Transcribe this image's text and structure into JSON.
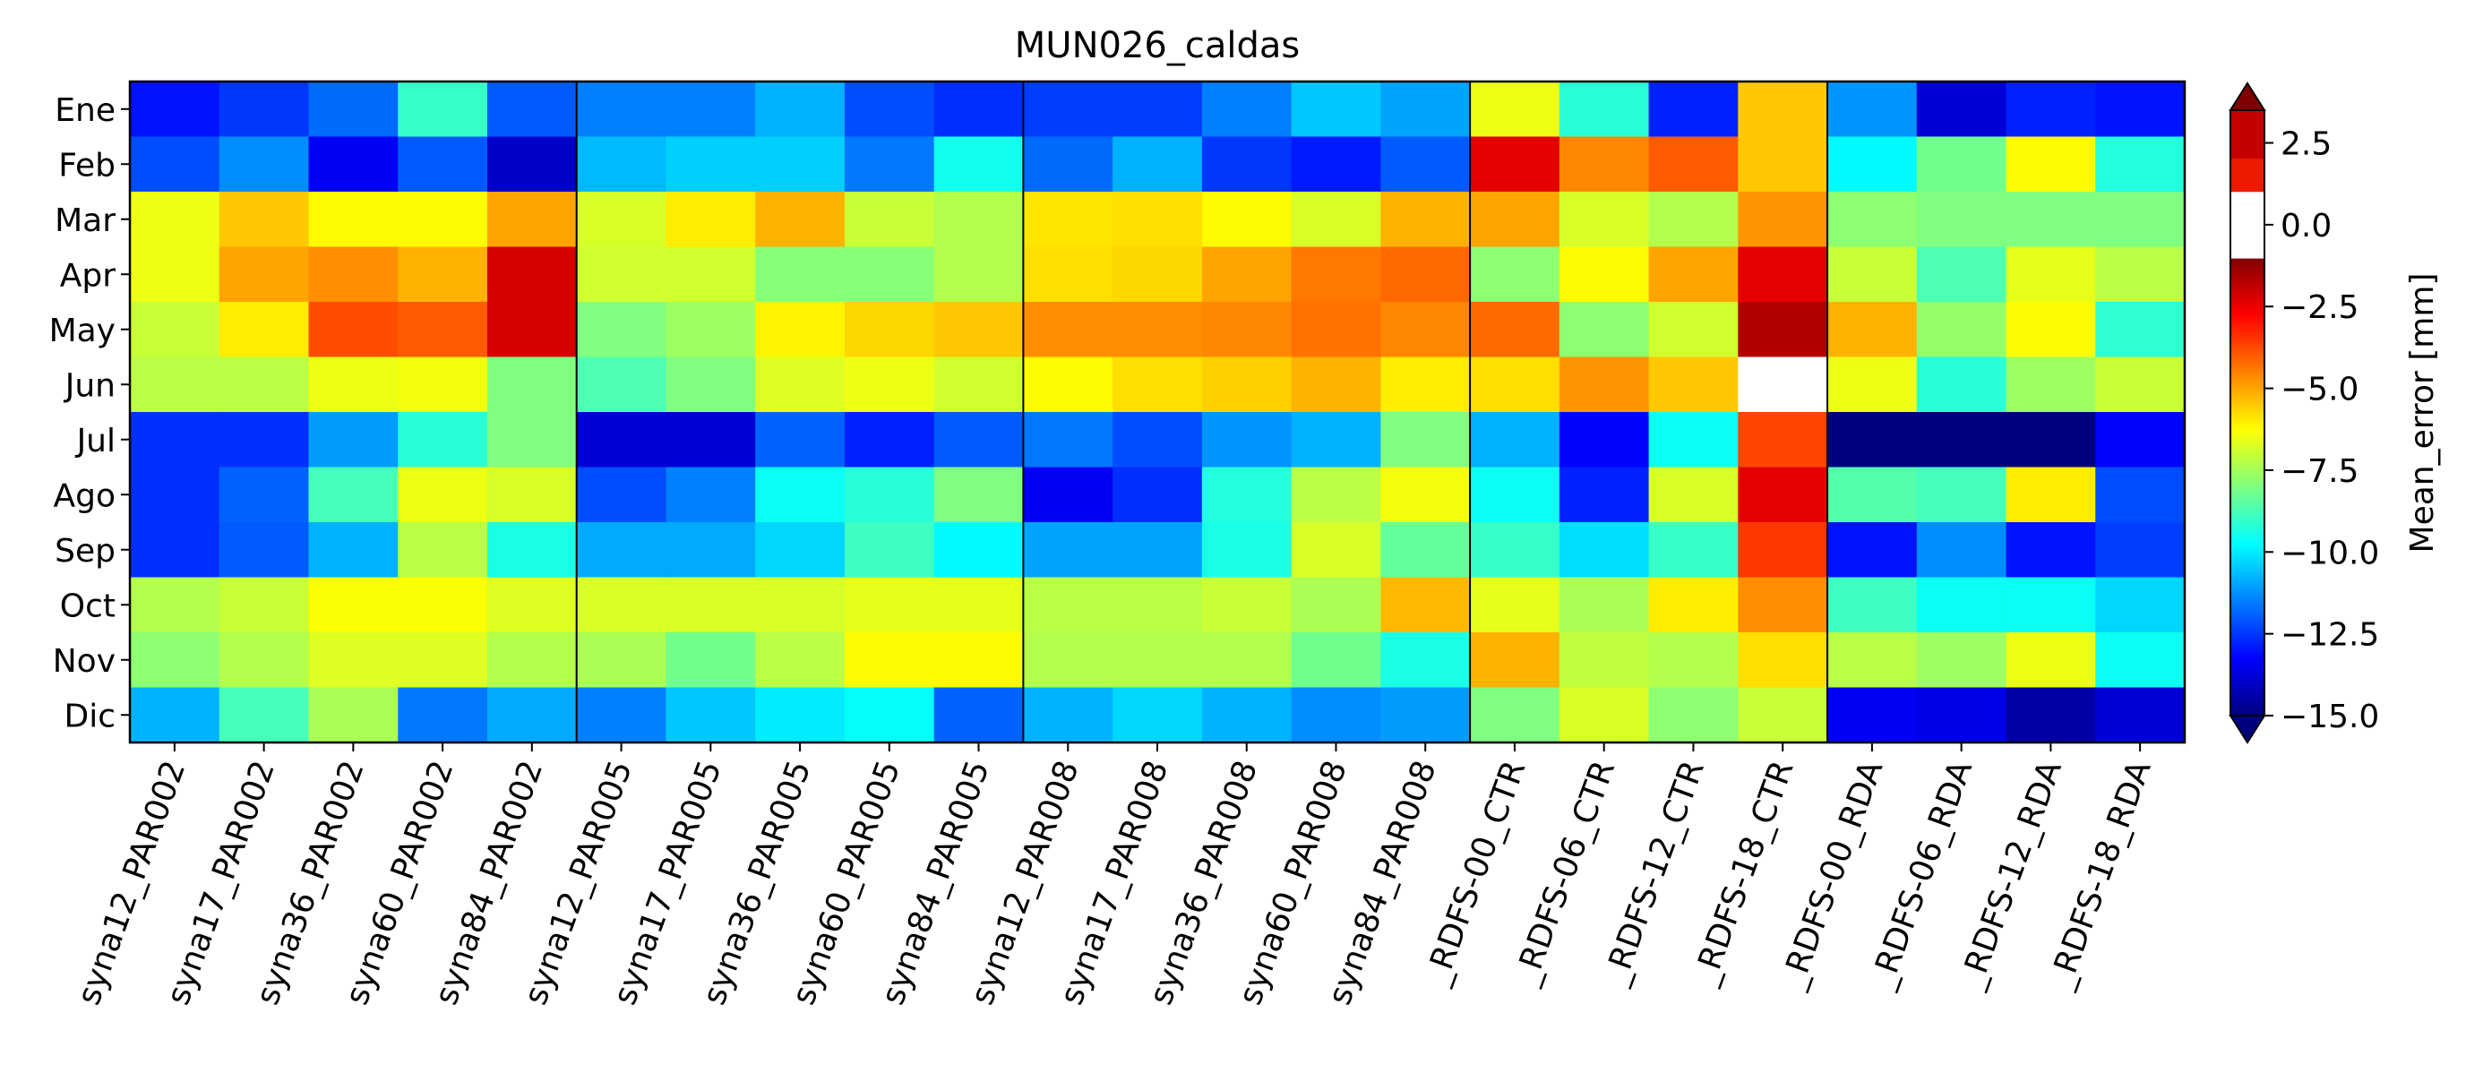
{
  "chart_data": {
    "type": "heatmap",
    "title": "MUN026_caldas",
    "xlabel": "",
    "ylabel": "",
    "categories": [
      "syna12_PAR002",
      "syna17_PAR002",
      "syna36_PAR002",
      "syna60_PAR002",
      "syna84_PAR002",
      "syna12_PAR005",
      "syna17_PAR005",
      "syna36_PAR005",
      "syna60_PAR005",
      "syna84_PAR005",
      "syna12_PAR008",
      "syna17_PAR008",
      "syna36_PAR008",
      "syna60_PAR008",
      "syna84_PAR008",
      "_RDFS-00_CTR",
      "_RDFS-06_CTR",
      "_RDFS-12_CTR",
      "_RDFS-18_CTR",
      "_RDFS-00_RDA",
      "_RDFS-06_RDA",
      "_RDFS-12_RDA",
      "_RDFS-18_RDA"
    ],
    "rows": [
      "Ene",
      "Feb",
      "Mar",
      "Apr",
      "May",
      "Jun",
      "Jul",
      "Ago",
      "Sep",
      "Oct",
      "Nov",
      "Dic"
    ],
    "values": [
      [
        -13.0,
        -12.5,
        -11.8,
        -9.0,
        -12.0,
        -11.5,
        -11.5,
        -10.8,
        -12.2,
        -12.6,
        -12.4,
        -12.4,
        -11.5,
        -10.5,
        -11.0,
        -6.5,
        -9.2,
        -12.8,
        -5.5,
        -11.2,
        -13.8,
        -12.8,
        -13.0
      ],
      [
        -12.2,
        -11.3,
        -13.4,
        -12.0,
        -14.0,
        -10.7,
        -10.4,
        -10.4,
        -11.6,
        -9.5,
        -11.8,
        -10.8,
        -12.5,
        -12.9,
        -12.0,
        -2.4,
        -4.6,
        -4.0,
        -5.5,
        -9.8,
        -8.2,
        -6.2,
        -9.3
      ],
      [
        -6.5,
        -5.5,
        -6.2,
        -6.2,
        -5.0,
        -6.8,
        -6.0,
        -5.2,
        -7.0,
        -7.3,
        -5.9,
        -5.8,
        -6.2,
        -6.8,
        -5.2,
        -5.0,
        -6.8,
        -7.3,
        -4.8,
        -7.8,
        -8.0,
        -8.0,
        -8.0
      ],
      [
        -6.5,
        -5.0,
        -4.7,
        -5.2,
        -2.2,
        -6.9,
        -6.9,
        -7.9,
        -7.9,
        -7.3,
        -5.8,
        -5.7,
        -5.0,
        -4.4,
        -4.2,
        -7.8,
        -6.2,
        -5.0,
        -2.4,
        -7.0,
        -8.7,
        -6.6,
        -7.2
      ],
      [
        -7.0,
        -6.0,
        -3.8,
        -4.0,
        -2.2,
        -8.0,
        -7.6,
        -6.1,
        -5.7,
        -5.5,
        -4.7,
        -4.7,
        -4.6,
        -4.3,
        -4.6,
        -4.2,
        -7.8,
        -6.9,
        -1.7,
        -5.2,
        -7.7,
        -6.2,
        -9.1
      ],
      [
        -7.2,
        -7.2,
        -6.5,
        -6.4,
        -8.0,
        -8.7,
        -8.0,
        -6.7,
        -6.5,
        -6.9,
        -6.2,
        -5.8,
        -5.6,
        -5.2,
        -6.0,
        -5.8,
        -4.8,
        -5.5,
        0.5,
        -6.5,
        -9.2,
        -7.6,
        -7.0
      ],
      [
        -12.6,
        -12.6,
        -11.1,
        -9.2,
        -8.0,
        -13.8,
        -13.8,
        -11.9,
        -12.8,
        -12.0,
        -11.6,
        -12.2,
        -11.2,
        -10.8,
        -8.0,
        -10.8,
        -13.2,
        -9.6,
        -3.7,
        -15.0,
        -15.0,
        -15.2,
        -13.2
      ],
      [
        -12.6,
        -11.9,
        -8.8,
        -6.5,
        -6.8,
        -12.2,
        -11.5,
        -9.6,
        -9.2,
        -8.0,
        -13.4,
        -12.6,
        -9.3,
        -7.2,
        -6.4,
        -9.6,
        -12.8,
        -6.8,
        -2.4,
        -8.6,
        -8.8,
        -6.0,
        -12.2
      ],
      [
        -12.6,
        -12.0,
        -10.8,
        -7.2,
        -9.4,
        -10.9,
        -10.9,
        -10.3,
        -8.9,
        -9.8,
        -11.0,
        -11.0,
        -9.4,
        -6.8,
        -8.4,
        -9.0,
        -10.2,
        -9.0,
        -3.5,
        -13.0,
        -11.3,
        -13.0,
        -12.4
      ],
      [
        -7.3,
        -7.0,
        -6.3,
        -6.3,
        -6.7,
        -6.8,
        -6.8,
        -6.8,
        -6.6,
        -6.6,
        -7.2,
        -7.2,
        -7.0,
        -7.4,
        -5.3,
        -6.6,
        -7.4,
        -6.0,
        -4.7,
        -8.9,
        -9.6,
        -9.6,
        -10.3
      ],
      [
        -7.8,
        -7.3,
        -6.7,
        -6.7,
        -7.3,
        -7.4,
        -8.2,
        -7.2,
        -6.2,
        -6.2,
        -7.3,
        -7.3,
        -7.3,
        -8.2,
        -9.4,
        -5.2,
        -7.1,
        -7.3,
        -5.8,
        -7.2,
        -7.6,
        -6.5,
        -9.6
      ],
      [
        -10.8,
        -8.8,
        -7.4,
        -11.6,
        -10.9,
        -11.5,
        -10.5,
        -10.0,
        -9.7,
        -11.9,
        -10.8,
        -10.3,
        -10.8,
        -11.3,
        -11.1,
        -8.0,
        -6.8,
        -7.8,
        -7.0,
        -13.4,
        -13.6,
        -14.5,
        -13.8
      ]
    ],
    "group_dividers_after_column": [
      4,
      9,
      14,
      18
    ],
    "colorbar": {
      "label": "Mean_error [mm]",
      "range": [
        -15.0,
        3.5
      ],
      "ticks": [
        2.5,
        0.0,
        -2.5,
        -5.0,
        -7.5,
        -10.0,
        -12.5,
        -15.0
      ],
      "tick_labels": [
        "2.5",
        "0.0",
        "−2.5",
        "−5.0",
        "−7.5",
        "−10.0",
        "−12.5",
        "−15.0"
      ],
      "extend": "both",
      "colormap": "jet",
      "upper_segments": [
        {
          "from": -1.0,
          "to": 1.0,
          "color": "#ffffff"
        },
        {
          "from": 1.0,
          "to": 2.0,
          "color": "#ee1a00"
        },
        {
          "from": 2.0,
          "to": 3.5,
          "color": "#c40000"
        }
      ],
      "over_color": "#7f0000",
      "under_color": "#00007f"
    },
    "grid": false
  }
}
